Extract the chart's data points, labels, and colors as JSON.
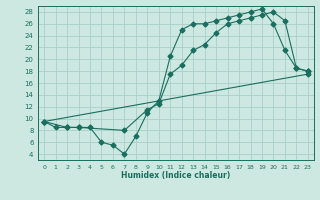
{
  "xlabel": "Humidex (Indice chaleur)",
  "ylabel": "",
  "bg_color": "#cce8e0",
  "line_color": "#1a6e60",
  "grid_color": "#aad0c8",
  "xlim": [
    -0.5,
    23.5
  ],
  "ylim": [
    3,
    29
  ],
  "xticks": [
    0,
    1,
    2,
    3,
    4,
    5,
    6,
    7,
    8,
    9,
    10,
    11,
    12,
    13,
    14,
    15,
    16,
    17,
    18,
    19,
    20,
    21,
    22,
    23
  ],
  "yticks": [
    4,
    6,
    8,
    10,
    12,
    14,
    16,
    18,
    20,
    22,
    24,
    26,
    28
  ],
  "line1_x": [
    0,
    1,
    2,
    3,
    4,
    5,
    6,
    7,
    8,
    9,
    10,
    11,
    12,
    13,
    14,
    15,
    16,
    17,
    18,
    19,
    20,
    21,
    22,
    23
  ],
  "line1_y": [
    9.5,
    8.5,
    8.5,
    8.5,
    8.5,
    6.0,
    5.5,
    4.0,
    7.0,
    11.0,
    13.0,
    20.5,
    25.0,
    26.0,
    26.0,
    26.5,
    27.0,
    27.5,
    28.0,
    28.5,
    26.0,
    21.5,
    18.5,
    18.0
  ],
  "line2_x": [
    0,
    2,
    3,
    7,
    9,
    10,
    11,
    12,
    13,
    14,
    15,
    16,
    17,
    18,
    19,
    20,
    21,
    22,
    23
  ],
  "line2_y": [
    9.5,
    8.5,
    8.5,
    8.0,
    11.5,
    12.5,
    17.5,
    19.0,
    21.5,
    22.5,
    24.5,
    26.0,
    26.5,
    27.0,
    27.5,
    28.0,
    26.5,
    18.5,
    18.0
  ],
  "line3_x": [
    0,
    23
  ],
  "line3_y": [
    9.5,
    17.5
  ]
}
